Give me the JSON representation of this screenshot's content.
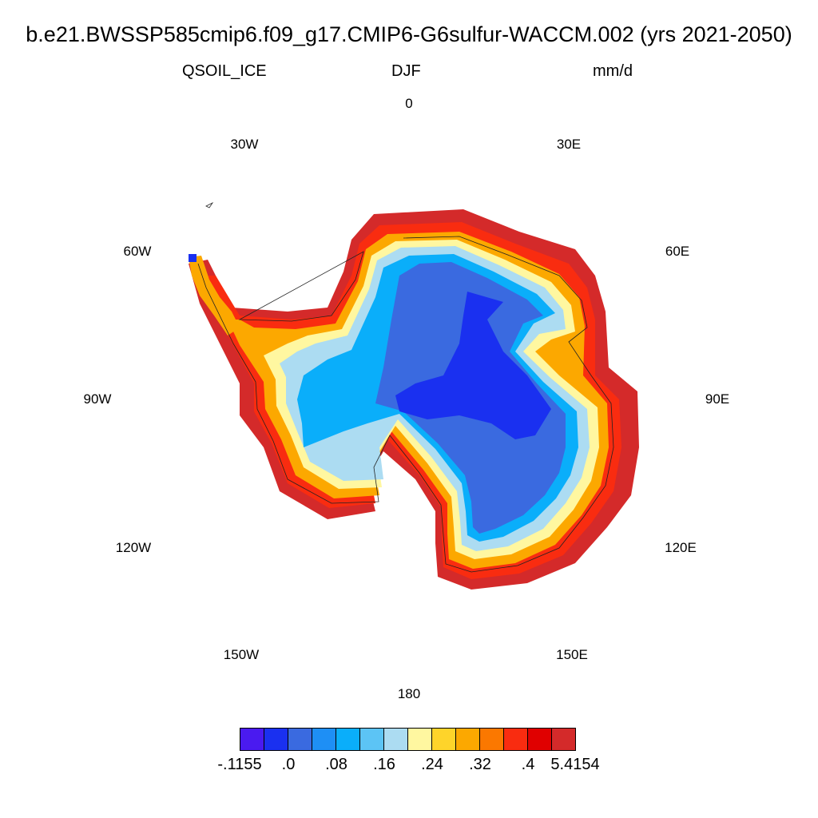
{
  "title": "b.e21.BWSSP585cmip6.f09_g17.CMIP6-G6sulfur-WACCM.002 (yrs 2021-2050)",
  "variable": "QSOIL_ICE",
  "season": "DJF",
  "units": "mm/d",
  "longitude_labels": {
    "lon_0": "0",
    "lon_30E": "30E",
    "lon_60E": "60E",
    "lon_90E": "90E",
    "lon_120E": "120E",
    "lon_150E": "150E",
    "lon_180": "180",
    "lon_150W": "150W",
    "lon_120W": "120W",
    "lon_90W": "90W",
    "lon_60W": "60W",
    "lon_30W": "30W"
  },
  "colorbar": {
    "colors": [
      "#4a1af0",
      "#1a30f0",
      "#3a6ae0",
      "#1e8ff5",
      "#0aaefa",
      "#5cc4f5",
      "#acdcf2",
      "#fff7a0",
      "#fed42a",
      "#fca800",
      "#fb7800",
      "#f92c10",
      "#e00000",
      "#d42a2a"
    ],
    "labels": [
      "-.1155",
      ".0",
      ".08",
      ".16",
      ".24",
      ".32",
      ".4",
      "5.4154"
    ]
  },
  "map_data": {
    "projection": "south polar stereographic",
    "region": "Antarctica",
    "field": "QSOIL_ICE",
    "interior_level": "-0.1155 to 0.08 (blue)",
    "coastal_level": "0.24 to 5.4154 (yellow-red)"
  }
}
